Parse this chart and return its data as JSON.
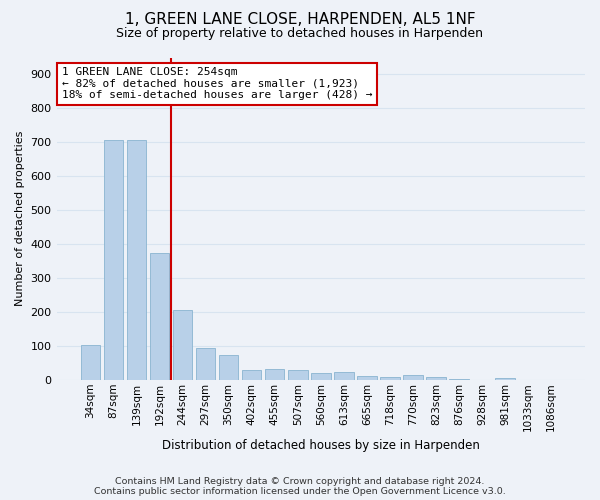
{
  "title": "1, GREEN LANE CLOSE, HARPENDEN, AL5 1NF",
  "subtitle": "Size of property relative to detached houses in Harpenden",
  "xlabel": "Distribution of detached houses by size in Harpenden",
  "ylabel": "Number of detached properties",
  "categories": [
    "34sqm",
    "87sqm",
    "139sqm",
    "192sqm",
    "244sqm",
    "297sqm",
    "350sqm",
    "402sqm",
    "455sqm",
    "507sqm",
    "560sqm",
    "613sqm",
    "665sqm",
    "718sqm",
    "770sqm",
    "823sqm",
    "876sqm",
    "928sqm",
    "981sqm",
    "1033sqm",
    "1086sqm"
  ],
  "values": [
    103,
    707,
    707,
    375,
    207,
    95,
    73,
    30,
    32,
    28,
    21,
    22,
    10,
    7,
    13,
    9,
    1,
    0,
    6,
    0,
    0
  ],
  "bar_color": "#b8d0e8",
  "bar_edge_color": "#8ab4d0",
  "vline_index": 4,
  "vline_color": "#cc0000",
  "annotation_line1": "1 GREEN LANE CLOSE: 254sqm",
  "annotation_line2": "← 82% of detached houses are smaller (1,923)",
  "annotation_line3": "18% of semi-detached houses are larger (428) →",
  "ann_box_fc": "#ffffff",
  "ann_box_ec": "#cc0000",
  "footer_line1": "Contains HM Land Registry data © Crown copyright and database right 2024.",
  "footer_line2": "Contains public sector information licensed under the Open Government Licence v3.0.",
  "bg_color": "#eef2f8",
  "grid_color": "#d8e4f0",
  "ylim_max": 950,
  "yticks": [
    0,
    100,
    200,
    300,
    400,
    500,
    600,
    700,
    800,
    900
  ]
}
